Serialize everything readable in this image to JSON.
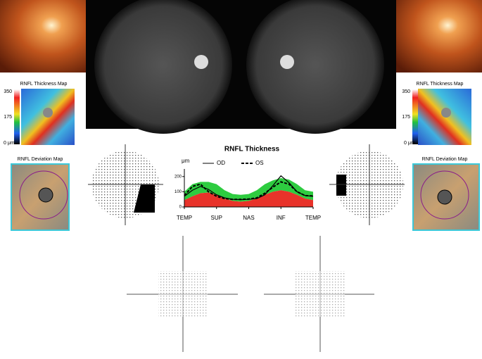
{
  "left": {
    "thickness_map": {
      "title": "RNFL Thickness Map",
      "scale": [
        "350",
        "175",
        "0 μm"
      ]
    },
    "deviation_map": {
      "title": "RNFL Deviation Map"
    }
  },
  "right": {
    "thickness_map": {
      "title": "RNFL Thickness Map",
      "scale": [
        "350",
        "175",
        "0 μm"
      ]
    },
    "deviation_map": {
      "title": "RNFL Deviation Map"
    }
  },
  "chart_data": {
    "type": "line",
    "title": "RNFL Thickness",
    "y_label": "μm",
    "x": [
      0,
      22.5,
      45,
      67.5,
      90,
      112.5,
      135,
      157.5,
      180,
      202.5,
      225,
      247.5,
      270,
      292.5,
      315,
      337.5,
      360
    ],
    "xlim": [
      0,
      360
    ],
    "xticks": [
      {
        "value": 0,
        "label": "TEMP"
      },
      {
        "value": 90,
        "label": "SUP"
      },
      {
        "value": 180,
        "label": "NAS"
      },
      {
        "value": 270,
        "label": "INF"
      },
      {
        "value": 360,
        "label": "TEMP"
      }
    ],
    "ylim": [
      0,
      250
    ],
    "yticks": [
      0,
      100,
      200
    ],
    "series": [
      {
        "name": "OD",
        "color": "#000000",
        "dash": false,
        "values": [
          70,
          110,
          135,
          115,
          80,
          60,
          50,
          48,
          50,
          55,
          80,
          140,
          205,
          160,
          100,
          75,
          70
        ]
      },
      {
        "name": "OS",
        "color": "#000000",
        "dash": true,
        "values": [
          75,
          135,
          150,
          100,
          70,
          55,
          50,
          50,
          52,
          60,
          90,
          130,
          165,
          150,
          100,
          75,
          72
        ]
      }
    ],
    "bands": {
      "upper": [
        100,
        150,
        165,
        165,
        150,
        110,
        85,
        80,
        85,
        110,
        150,
        175,
        190,
        180,
        150,
        110,
        100
      ],
      "lower": [
        45,
        70,
        90,
        95,
        80,
        55,
        40,
        35,
        40,
        55,
        80,
        100,
        110,
        100,
        80,
        55,
        45
      ],
      "upper_color": "#2ecc40",
      "lower_color": "#e8332a"
    }
  }
}
